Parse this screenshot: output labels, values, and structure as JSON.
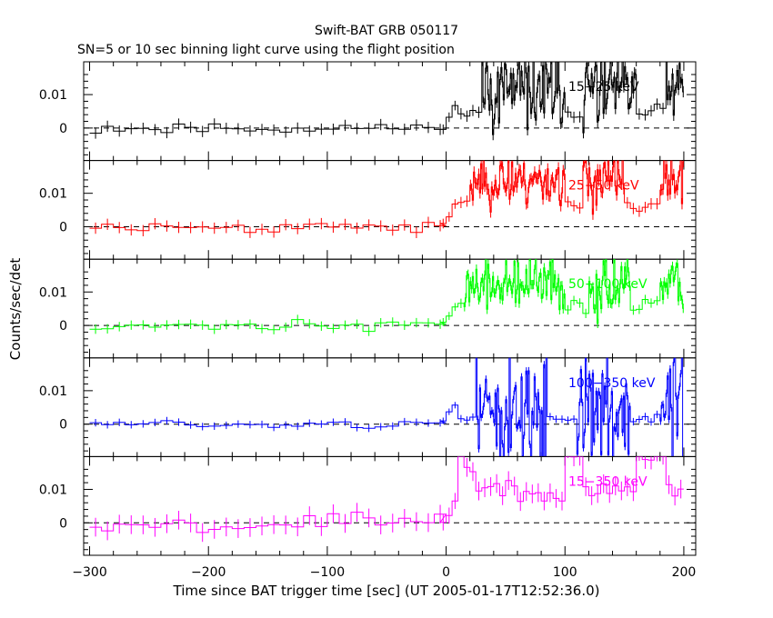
{
  "chart_data": {
    "type": "line",
    "title": "Swift-BAT GRB 050117",
    "subtitle": "SN=5 or 10 sec binning light curve using the flight position",
    "xlabel": "Time since BAT trigger time [sec] (UT 2005-01-17T12:52:36.0)",
    "ylabel": "Counts/sec/det",
    "xlim": [
      -305,
      210
    ],
    "ylim": [
      -0.0097,
      0.0198
    ],
    "x_ticks": [
      -300,
      -200,
      -100,
      0,
      100,
      200
    ],
    "x_tick_labels": [
      "−300",
      "−200",
      "−100",
      "0",
      "100",
      "200"
    ],
    "y_ticks": [
      0,
      0.01
    ],
    "y_tick_labels": [
      "0",
      "0.01"
    ],
    "panels": [
      {
        "band": "15-25 keV",
        "label": "15−25 keV",
        "color": "#000000",
        "pre_bin": 10,
        "burst_bin": 1,
        "noise": 0.0012,
        "burst_noise": 0.0085,
        "burst_level": 0.011,
        "burst_windows": [
          [
            30,
            100
          ],
          [
            115,
            160
          ],
          [
            185,
            200
          ]
        ],
        "seed": 11
      },
      {
        "band": "25-50 keV",
        "label": "25−50 keV",
        "color": "#ff0000",
        "pre_bin": 10,
        "burst_bin": 1,
        "noise": 0.0012,
        "burst_noise": 0.0055,
        "burst_level": 0.014,
        "burst_windows": [
          [
            20,
            100
          ],
          [
            115,
            150
          ],
          [
            180,
            200
          ]
        ],
        "seed": 23
      },
      {
        "band": "50-100 keV",
        "label": "50−100 keV",
        "color": "#00ff00",
        "pre_bin": 10,
        "burst_bin": 1,
        "noise": 0.001,
        "burst_noise": 0.006,
        "burst_level": 0.012,
        "burst_windows": [
          [
            15,
            100
          ],
          [
            120,
            155
          ],
          [
            180,
            200
          ]
        ],
        "seed": 37
      },
      {
        "band": "100-350 keV",
        "label": "100−350 keV",
        "color": "#0000ff",
        "pre_bin": 10,
        "burst_bin": 1,
        "noise": 0.0008,
        "burst_noise": 0.013,
        "burst_level": 0.004,
        "burst_windows": [
          [
            25,
            85
          ],
          [
            110,
            155
          ],
          [
            180,
            200
          ]
        ],
        "seed": 51
      },
      {
        "band": "15-350 keV",
        "label": "15−350 keV",
        "color": "#ff00ff",
        "pre_bin": 10,
        "burst_bin": 5,
        "noise": 0.002,
        "burst_noise": 0.004,
        "burst_level": 0.02,
        "burst_windows": [
          [
            0,
            25
          ],
          [
            100,
            115
          ],
          [
            160,
            185
          ]
        ],
        "seed": 67,
        "clipped": true
      }
    ]
  }
}
